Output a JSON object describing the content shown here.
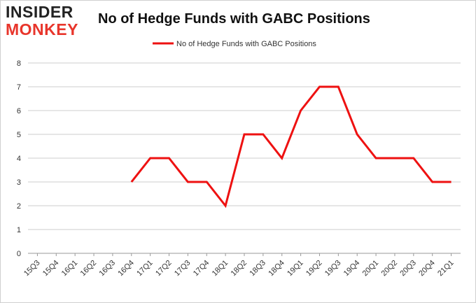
{
  "logo": {
    "line1": "INSIDER",
    "line2": "MONKEY"
  },
  "colors": {
    "series": "#ee1111",
    "grid": "#cccccc",
    "brand_red": "#e8352b"
  },
  "chart_data": {
    "type": "line",
    "title": "No of Hedge Funds with GABC Positions",
    "xlabel": "",
    "ylabel": "",
    "ylim": [
      0,
      8
    ],
    "yticks": [
      0,
      1,
      2,
      3,
      4,
      5,
      6,
      7,
      8
    ],
    "grid": true,
    "legend_position": "top-center",
    "categories": [
      "15Q3",
      "15Q4",
      "16Q1",
      "16Q2",
      "16Q3",
      "16Q4",
      "17Q1",
      "17Q2",
      "17Q3",
      "17Q4",
      "18Q1",
      "18Q2",
      "18Q3",
      "18Q4",
      "19Q1",
      "19Q2",
      "19Q3",
      "19Q4",
      "20Q1",
      "20Q2",
      "20Q3",
      "20Q4",
      "21Q1"
    ],
    "series": [
      {
        "name": "No of Hedge Funds with GABC Positions",
        "values": [
          null,
          null,
          null,
          null,
          null,
          3,
          4,
          4,
          3,
          3,
          2,
          5,
          5,
          4,
          6,
          7,
          7,
          5,
          4,
          4,
          4,
          3,
          3
        ]
      }
    ]
  }
}
